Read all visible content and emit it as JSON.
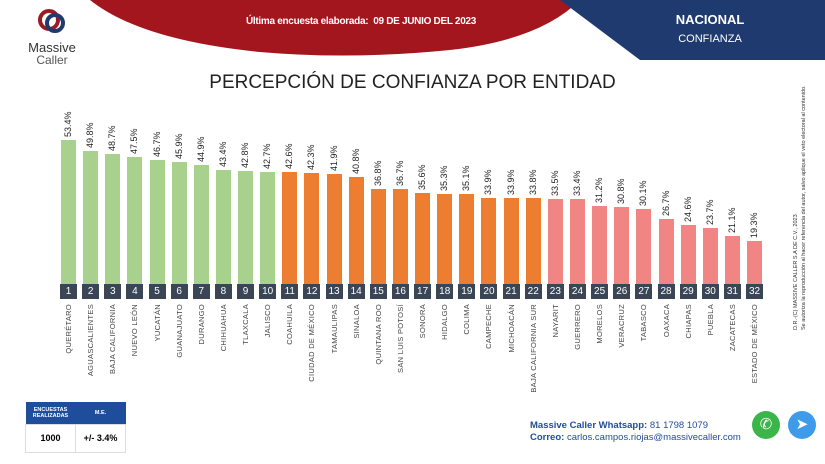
{
  "header": {
    "logo_line1": "Massive",
    "logo_line2": "Caller",
    "survey_label": "Última encuesta elaborada:",
    "survey_date": "09 DE JUNIO DEL 2023",
    "scope": "NACIONAL",
    "topic": "CONFIANZA"
  },
  "colors": {
    "green": "#a9d18e",
    "orange": "#ed7d31",
    "red": "#f08584",
    "rank_box": "#3a4656",
    "header_red": "#a3161d",
    "header_blue": "#1f3a6e"
  },
  "chart_data": {
    "type": "bar",
    "title": "PERCEPCIÓN DE CONFIANZA POR ENTIDAD",
    "categories": [
      "QUERÉTARO",
      "AGUASCALIENTES",
      "BAJA CALIFORNIA",
      "NUEVO LEÓN",
      "YUCATÁN",
      "GUANAJUATO",
      "DURANGO",
      "CHIHUAHUA",
      "TLAXCALA",
      "JALISCO",
      "COAHUILA",
      "CIUDAD DE MÉXICO",
      "TAMAULIPAS",
      "SINALOA",
      "QUINTANA ROO",
      "SAN LUIS POTOSÍ",
      "SONORA",
      "HIDALGO",
      "COLIMA",
      "CAMPECHE",
      "MICHOACÁN",
      "BAJA CALIFORNIA SUR",
      "NAYARIT",
      "GUERRERO",
      "MORELOS",
      "VERACRUZ",
      "TABASCO",
      "OAXACA",
      "CHIAPAS",
      "PUEBLA",
      "ZACATECAS",
      "ESTADO DE MÉXICO"
    ],
    "values": [
      53.4,
      49.8,
      48.7,
      47.5,
      46.7,
      45.9,
      44.9,
      43.4,
      42.8,
      42.7,
      42.6,
      42.3,
      41.9,
      40.8,
      36.8,
      36.7,
      35.6,
      35.3,
      35.1,
      33.9,
      33.9,
      33.8,
      33.5,
      33.4,
      31.2,
      30.8,
      30.1,
      26.7,
      24.6,
      23.7,
      21.1,
      19.3
    ],
    "labels": [
      "53.4%",
      "49.8%",
      "48.7%",
      "47.5%",
      "46.7%",
      "45.9%",
      "44.9%",
      "43.4%",
      "42.8%",
      "42.7%",
      "42.6%",
      "42.3%",
      "41.9%",
      "40.8%",
      "36.8%",
      "36.7%",
      "35.6%",
      "35.3%",
      "35.1%",
      "33.9%",
      "33.9%",
      "33.8%",
      "33.5%",
      "33.4%",
      "31.2%",
      "30.8%",
      "30.1%",
      "26.7%",
      "24.6%",
      "23.7%",
      "21.1%",
      "19.3%"
    ],
    "ranks": [
      "1",
      "2",
      "3",
      "4",
      "5",
      "6",
      "7",
      "8",
      "9",
      "10",
      "11",
      "12",
      "13",
      "14",
      "15",
      "16",
      "17",
      "18",
      "19",
      "20",
      "21",
      "22",
      "23",
      "24",
      "25",
      "26",
      "27",
      "28",
      "29",
      "30",
      "31",
      "32"
    ],
    "groups": [
      "green",
      "green",
      "green",
      "green",
      "green",
      "green",
      "green",
      "green",
      "green",
      "green",
      "orange",
      "orange",
      "orange",
      "orange",
      "orange",
      "orange",
      "orange",
      "orange",
      "orange",
      "orange",
      "orange",
      "orange",
      "red",
      "red",
      "red",
      "red",
      "red",
      "red",
      "red",
      "red",
      "red",
      "red"
    ],
    "unit": "%"
  },
  "copyright": {
    "line1": "D.R.-(C) MASSIVE CALLER S.A DE C.V., 2023",
    "line2": "Se autoriza la reproducción al hacer referencia del autor, salvo aplique el veto electoral al contenido."
  },
  "stats": {
    "h1": "ENCUESTAS REALIZADAS",
    "h2": "M.E.",
    "v1": "1000",
    "v2": "+/- 3.4%"
  },
  "contact": {
    "wa_label": "Massive Caller Whatsapp:",
    "wa_number": "81 1798 1079",
    "mail_label": "Correo:",
    "mail": "carlos.campos.riojas@massivecaller.com"
  },
  "icons": {
    "whatsapp": "whatsapp-icon",
    "telegram": "telegram-icon"
  }
}
